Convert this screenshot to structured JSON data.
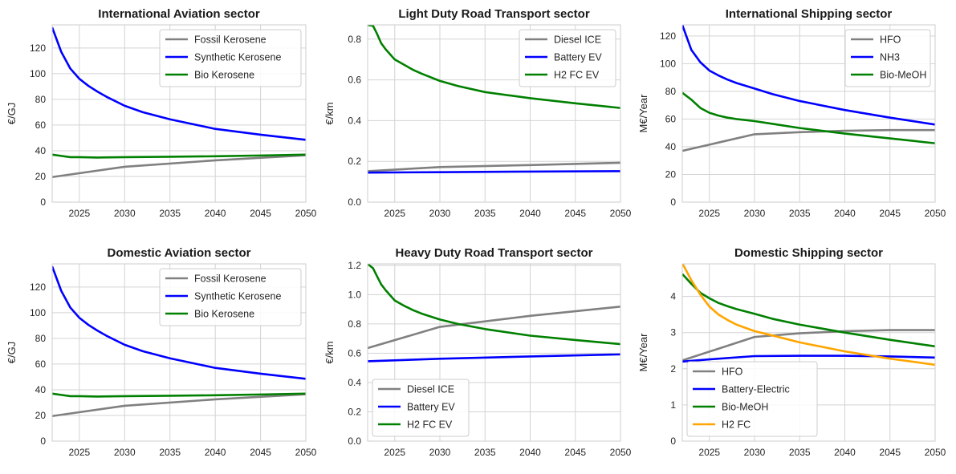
{
  "figure": {
    "chart_data": [
      {
        "type": "line",
        "title": "International Aviation sector",
        "xlabel": "",
        "ylabel": "€/GJ",
        "xlim": [
          2022,
          2050
        ],
        "ylim": [
          0,
          138
        ],
        "xticks": [
          2025,
          2030,
          2035,
          2040,
          2045,
          2050
        ],
        "yticks": [
          0,
          20,
          40,
          60,
          80,
          100,
          120
        ],
        "grid": true,
        "legend_position": "top-right",
        "series": [
          {
            "name": "Fossil Kerosene",
            "color": "#808080",
            "x": [
              2022,
              2030,
              2040,
              2050
            ],
            "y": [
              19.5,
              27.5,
              32.5,
              36.5
            ]
          },
          {
            "name": "Synthetic Kerosene",
            "color": "#0000ff",
            "x": [
              2022,
              2023,
              2024,
              2025,
              2026,
              2027,
              2028,
              2030,
              2032,
              2035,
              2040,
              2045,
              2050
            ],
            "y": [
              136,
              117,
              104,
              96,
              90.5,
              86,
              82,
              75,
              70,
              64.5,
              57,
              52.5,
              48.5
            ]
          },
          {
            "name": "Bio Kerosene",
            "color": "#008000",
            "x": [
              2022,
              2023,
              2024,
              2025,
              2027,
              2030,
              2035,
              2040,
              2045,
              2050
            ],
            "y": [
              37,
              36,
              35,
              35,
              34.7,
              35,
              35.3,
              35.7,
              36.3,
              37
            ]
          }
        ]
      },
      {
        "type": "line",
        "title": "Light Duty Road Transport sector",
        "xlabel": "",
        "ylabel": "€/km",
        "xlim": [
          2022,
          2050
        ],
        "ylim": [
          0,
          0.87
        ],
        "xticks": [
          2025,
          2030,
          2035,
          2040,
          2045,
          2050
        ],
        "yticks": [
          0.0,
          0.2,
          0.4,
          0.6,
          0.8
        ],
        "grid": true,
        "legend_position": "top-right",
        "series": [
          {
            "name": "Diesel ICE",
            "color": "#808080",
            "x": [
              2022,
              2030,
              2040,
              2050
            ],
            "y": [
              0.152,
              0.172,
              0.182,
              0.193
            ]
          },
          {
            "name": "Battery EV",
            "color": "#0000ff",
            "x": [
              2022,
              2030,
              2040,
              2050
            ],
            "y": [
              0.145,
              0.147,
              0.15,
              0.152
            ]
          },
          {
            "name": "H2 FC EV",
            "color": "#008000",
            "x": [
              2022,
              2022.6,
              2023,
              2023.5,
              2024,
              2025,
              2026,
              2027,
              2028,
              2030,
              2032,
              2035,
              2040,
              2045,
              2050
            ],
            "y": [
              0.87,
              0.865,
              0.83,
              0.78,
              0.75,
              0.7,
              0.675,
              0.65,
              0.63,
              0.595,
              0.57,
              0.54,
              0.51,
              0.485,
              0.462
            ]
          }
        ]
      },
      {
        "type": "line",
        "title": "International Shipping sector",
        "xlabel": "",
        "ylabel": "M€/Year",
        "xlim": [
          2022,
          2050
        ],
        "ylim": [
          0,
          128
        ],
        "xticks": [
          2025,
          2030,
          2035,
          2040,
          2045,
          2050
        ],
        "yticks": [
          0,
          20,
          40,
          60,
          80,
          100,
          120
        ],
        "grid": true,
        "legend_position": "top-right",
        "series": [
          {
            "name": "HFO",
            "color": "#808080",
            "x": [
              2022,
              2030,
              2035,
              2040,
              2045,
              2050
            ],
            "y": [
              37,
              49,
              50.5,
              51.5,
              52,
              52
            ]
          },
          {
            "name": "NH3",
            "color": "#0000ff",
            "x": [
              2022,
              2023,
              2024,
              2025,
              2026,
              2027,
              2028,
              2030,
              2032,
              2035,
              2040,
              2045,
              2050
            ],
            "y": [
              128,
              110,
              101,
              95,
              91.5,
              88.5,
              86,
              82,
              78,
              73,
              66.5,
              61,
              56
            ]
          },
          {
            "name": "Bio-MeOH",
            "color": "#008000",
            "x": [
              2022,
              2023,
              2024,
              2025,
              2026,
              2027,
              2028,
              2030,
              2032,
              2035,
              2040,
              2045,
              2050
            ],
            "y": [
              79,
              74,
              68,
              64.5,
              62.5,
              61,
              60,
              58.5,
              56.5,
              53.5,
              49.5,
              46,
              42.5
            ]
          }
        ]
      },
      {
        "type": "line",
        "title": "Domestic Aviation sector",
        "xlabel": "",
        "ylabel": "€/GJ",
        "xlim": [
          2022,
          2050
        ],
        "ylim": [
          0,
          138
        ],
        "xticks": [
          2025,
          2030,
          2035,
          2040,
          2045,
          2050
        ],
        "yticks": [
          0,
          20,
          40,
          60,
          80,
          100,
          120
        ],
        "grid": true,
        "legend_position": "top-right",
        "series": [
          {
            "name": "Fossil Kerosene",
            "color": "#808080",
            "x": [
              2022,
              2030,
              2040,
              2050
            ],
            "y": [
              19.5,
              27.5,
              32.5,
              36.5
            ]
          },
          {
            "name": "Synthetic Kerosene",
            "color": "#0000ff",
            "x": [
              2022,
              2023,
              2024,
              2025,
              2026,
              2027,
              2028,
              2030,
              2032,
              2035,
              2040,
              2045,
              2050
            ],
            "y": [
              136,
              117,
              104,
              96,
              90.5,
              86,
              82,
              75,
              70,
              64.5,
              57,
              52.5,
              48.5
            ]
          },
          {
            "name": "Bio Kerosene",
            "color": "#008000",
            "x": [
              2022,
              2023,
              2024,
              2025,
              2027,
              2030,
              2035,
              2040,
              2045,
              2050
            ],
            "y": [
              37,
              36,
              35,
              35,
              34.7,
              35,
              35.3,
              35.7,
              36.3,
              37
            ]
          }
        ]
      },
      {
        "type": "line",
        "title": "Heavy Duty Road Transport sector",
        "xlabel": "",
        "ylabel": "€/km",
        "xlim": [
          2022,
          2050
        ],
        "ylim": [
          0,
          1.21
        ],
        "xticks": [
          2025,
          2030,
          2035,
          2040,
          2045,
          2050
        ],
        "yticks": [
          0.0,
          0.2,
          0.4,
          0.6,
          0.8,
          1.0,
          1.2
        ],
        "grid": true,
        "legend_position": "bottom-left",
        "series": [
          {
            "name": "Diesel ICE",
            "color": "#808080",
            "x": [
              2022,
              2030,
              2040,
              2050
            ],
            "y": [
              0.635,
              0.78,
              0.855,
              0.918
            ]
          },
          {
            "name": "Battery EV",
            "color": "#0000ff",
            "x": [
              2022,
              2030,
              2040,
              2050
            ],
            "y": [
              0.545,
              0.562,
              0.578,
              0.592
            ]
          },
          {
            "name": "H2 FC EV",
            "color": "#008000",
            "x": [
              2022,
              2022.6,
              2023,
              2023.5,
              2024,
              2025,
              2026,
              2027,
              2028,
              2030,
              2032,
              2035,
              2040,
              2045,
              2050
            ],
            "y": [
              1.21,
              1.18,
              1.13,
              1.07,
              1.03,
              0.96,
              0.925,
              0.895,
              0.87,
              0.83,
              0.8,
              0.765,
              0.72,
              0.69,
              0.662
            ]
          }
        ]
      },
      {
        "type": "line",
        "title": "Domestic Shipping sector",
        "xlabel": "",
        "ylabel": "M€/Year",
        "xlim": [
          2022,
          2050
        ],
        "ylim": [
          0,
          4.9
        ],
        "xticks": [
          2025,
          2030,
          2035,
          2040,
          2045,
          2050
        ],
        "yticks": [
          0,
          1,
          2,
          3,
          4
        ],
        "grid": true,
        "legend_position": "bottom-left",
        "series": [
          {
            "name": "HFO",
            "color": "#808080",
            "x": [
              2022,
              2030,
              2035,
              2040,
              2045,
              2050
            ],
            "y": [
              2.23,
              2.88,
              2.98,
              3.04,
              3.07,
              3.07
            ]
          },
          {
            "name": "Battery-Electric",
            "color": "#0000ff",
            "x": [
              2022,
              2025,
              2030,
              2035,
              2040,
              2045,
              2050
            ],
            "y": [
              2.2,
              2.26,
              2.35,
              2.36,
              2.36,
              2.34,
              2.31
            ]
          },
          {
            "name": "Bio-MeOH",
            "color": "#008000",
            "x": [
              2022,
              2023,
              2024,
              2025,
              2026,
              2027,
              2028,
              2030,
              2032,
              2035,
              2040,
              2045,
              2050
            ],
            "y": [
              4.62,
              4.35,
              4.1,
              3.95,
              3.82,
              3.73,
              3.65,
              3.52,
              3.38,
              3.22,
              3.0,
              2.8,
              2.62
            ]
          },
          {
            "name": "H2 FC",
            "color": "#ffa500",
            "x": [
              2022,
              2023,
              2024,
              2025,
              2026,
              2027,
              2028,
              2030,
              2032,
              2035,
              2040,
              2045,
              2050
            ],
            "y": [
              4.92,
              4.45,
              4.05,
              3.72,
              3.5,
              3.35,
              3.22,
              3.04,
              2.92,
              2.73,
              2.48,
              2.28,
              2.11
            ]
          }
        ]
      }
    ]
  }
}
